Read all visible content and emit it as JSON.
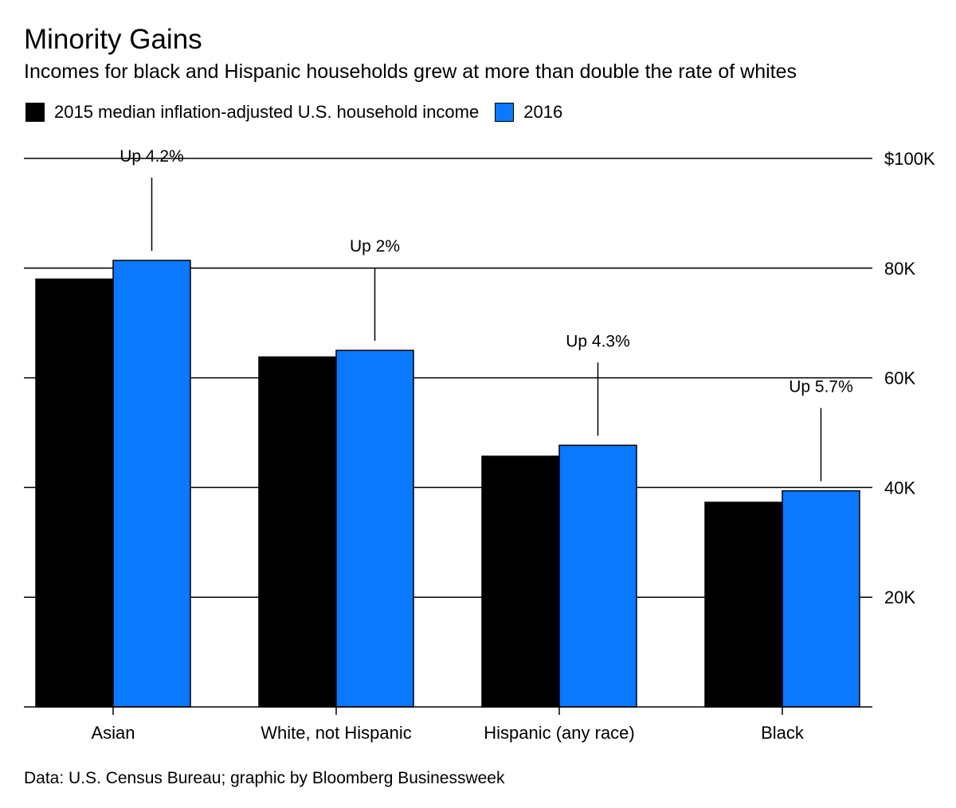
{
  "colors": {
    "series_2015": "#000000",
    "series_2016": "#0a78ff",
    "grid": "#000000"
  },
  "source": "Data: U.S. Census Bureau; graphic by Bloomberg Businessweek",
  "chart_data": {
    "type": "bar",
    "title": "Minority Gains",
    "subtitle": "Incomes for black and Hispanic households grew at more than double the rate of whites",
    "categories": [
      "Asian",
      "White, not Hispanic",
      "Hispanic (any race)",
      "Black"
    ],
    "series": [
      {
        "name": "2015 median inflation-adjusted U.S. household income",
        "values": [
          78000,
          63800,
          45700,
          37300
        ]
      },
      {
        "name": "2016",
        "values": [
          81400,
          65000,
          47700,
          39400
        ]
      }
    ],
    "annotations": [
      "Up 4.2%",
      "Up 2%",
      "Up 4.3%",
      "Up 5.7%"
    ],
    "ylim": [
      0,
      100000
    ],
    "yticks": [
      20000,
      40000,
      60000,
      80000,
      100000
    ],
    "ytick_labels": [
      "20K",
      "40K",
      "60K",
      "80K",
      "$100K"
    ],
    "xlabel": "",
    "ylabel": "",
    "grid": true,
    "legend_position": "top-left"
  }
}
